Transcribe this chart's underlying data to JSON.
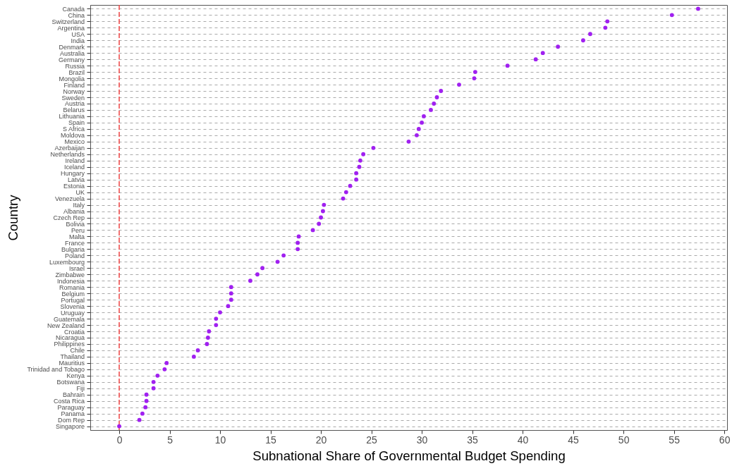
{
  "chart_data": {
    "type": "scatter",
    "orientation": "horizontal",
    "xlabel": "Subnational Share of Governmental Budget Spending",
    "ylabel": "Country",
    "categories": [
      "Canada",
      "China",
      "Switzerland",
      "Argentina",
      "USA",
      "India",
      "Denmark",
      "Australia",
      "Germany",
      "Russia",
      "Brazil",
      "Mongolia",
      "Finland",
      "Norway",
      "Sweden",
      "Austria",
      "Belarus",
      "Lithuania",
      "Spain",
      "S Africa",
      "Moldova",
      "Mexico",
      "Azerbaijan",
      "Netherlands",
      "Ireland",
      "Iceland",
      "Hungary",
      "Latvia",
      "Estonia",
      "UK",
      "Venezuela",
      "Italy",
      "Albania",
      "Czech Rep",
      "Bolivia",
      "Peru",
      "Malta",
      "France",
      "Bulgaria",
      "Poland",
      "Luxembourg",
      "Israel",
      "Zimbabwe",
      "Indonesia",
      "Romania",
      "Belgium",
      "Portugal",
      "Slovenia",
      "Uruguay",
      "Guatemala",
      "New Zealand",
      "Croatia",
      "Nicaragua",
      "Philippines",
      "Chile",
      "Thailand",
      "Mauritius",
      "Trinidad and Tobago",
      "Kenya",
      "Botswana",
      "Fiji",
      "Bahrain",
      "Costa Rica",
      "Paraguay",
      "Panama",
      "Dom Rep",
      "Singapore"
    ],
    "values": [
      57.4,
      54.8,
      48.4,
      48.2,
      46.7,
      46.0,
      43.5,
      42.0,
      41.3,
      38.5,
      35.3,
      35.2,
      33.7,
      31.9,
      31.5,
      31.2,
      30.9,
      30.2,
      30.0,
      29.7,
      29.5,
      28.7,
      25.2,
      24.2,
      23.9,
      23.8,
      23.5,
      23.5,
      22.9,
      22.5,
      22.2,
      20.3,
      20.2,
      20.0,
      19.8,
      19.2,
      17.8,
      17.7,
      17.7,
      16.3,
      15.7,
      14.2,
      13.7,
      13.0,
      11.1,
      11.1,
      11.1,
      10.8,
      10.0,
      9.6,
      9.6,
      8.9,
      8.8,
      8.7,
      7.8,
      7.4,
      4.7,
      4.5,
      3.8,
      3.4,
      3.4,
      2.7,
      2.7,
      2.6,
      2.3,
      2.0,
      0
    ],
    "color": "#a020f0",
    "marker": "circle",
    "xlim": [
      -2.87,
      60.27
    ],
    "xticks": [
      0,
      5,
      10,
      15,
      20,
      25,
      30,
      35,
      40,
      45,
      50,
      55,
      60
    ],
    "grid": "y",
    "ref_lines": [
      {
        "axis": "x",
        "value": 0,
        "color": "#ef4444",
        "line_style": "dashed"
      }
    ]
  }
}
